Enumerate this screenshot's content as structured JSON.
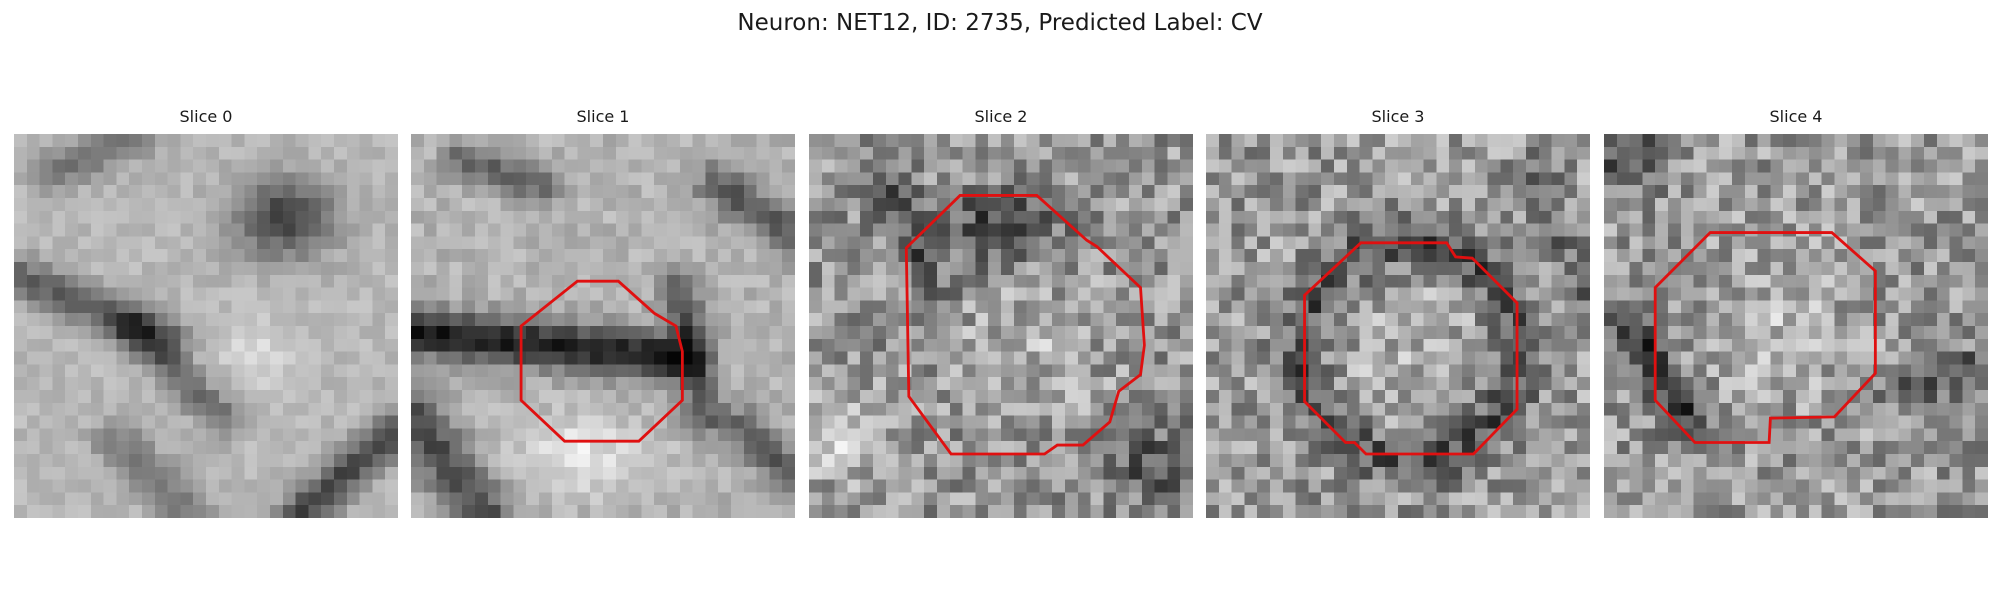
{
  "figure": {
    "title": "Neuron: NET12, ID: 2735, Predicted Label: CV"
  },
  "panels": [
    {
      "title": "Slice 0",
      "has_outline": false
    },
    {
      "title": "Slice 1",
      "has_outline": true
    },
    {
      "title": "Slice 2",
      "has_outline": true
    },
    {
      "title": "Slice 3",
      "has_outline": true
    },
    {
      "title": "Slice 4",
      "has_outline": true
    }
  ],
  "colors": {
    "outline": "#e01010",
    "background": "#ffffff",
    "text": "#1a1a1a"
  }
}
